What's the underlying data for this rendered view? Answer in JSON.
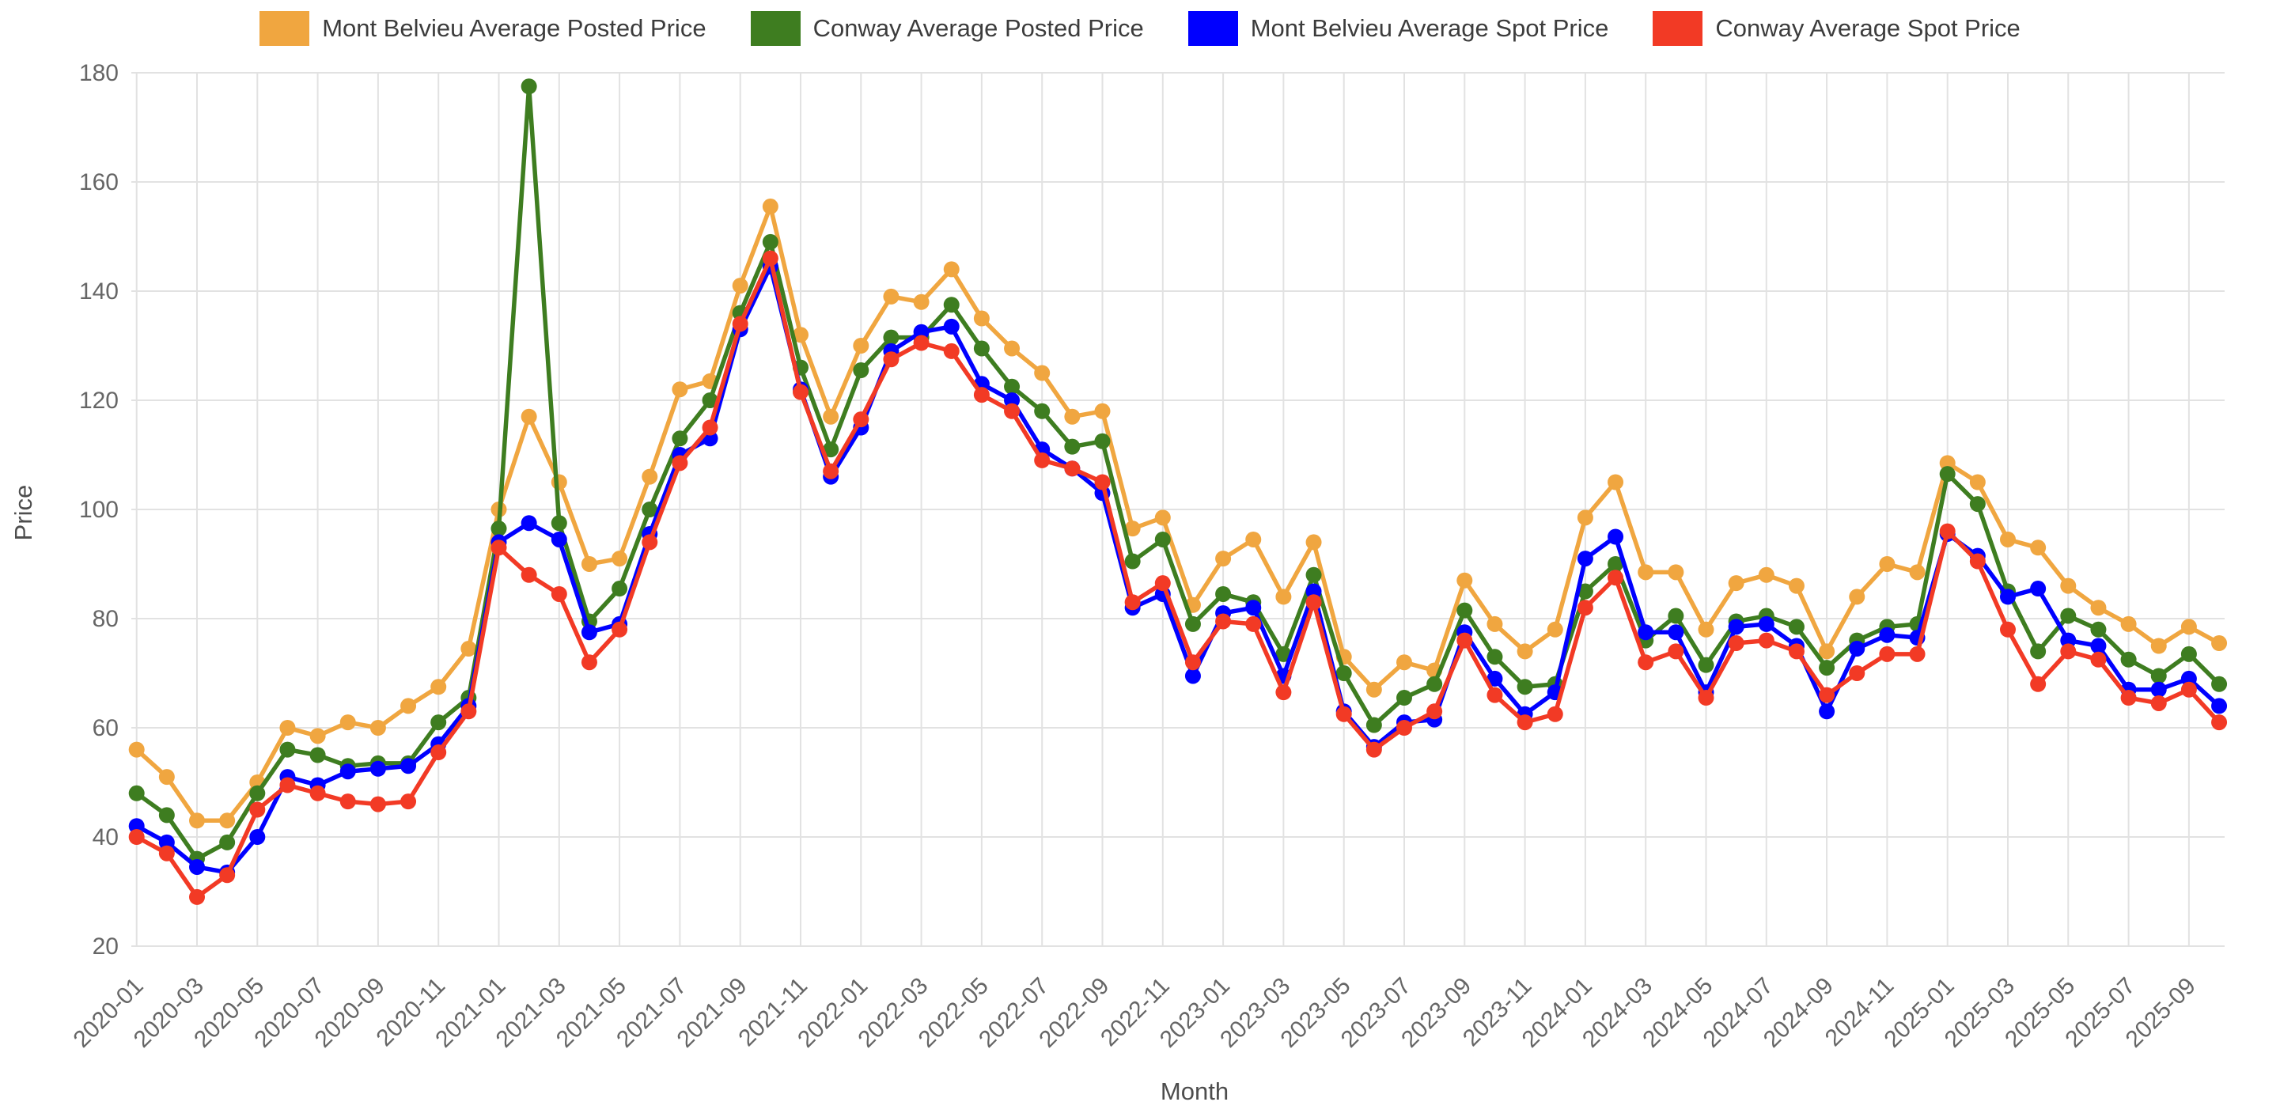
{
  "chart_data": {
    "type": "line",
    "title": "",
    "xlabel": "Month",
    "ylabel": "Price",
    "ylim": [
      20,
      180
    ],
    "grid": true,
    "legend_position": "top",
    "y_ticks": [
      20,
      40,
      60,
      80,
      100,
      120,
      140,
      160,
      180
    ],
    "x": [
      "2020-01",
      "2020-02",
      "2020-03",
      "2020-04",
      "2020-05",
      "2020-06",
      "2020-07",
      "2020-08",
      "2020-09",
      "2020-10",
      "2020-11",
      "2020-12",
      "2021-01",
      "2021-02",
      "2021-03",
      "2021-04",
      "2021-05",
      "2021-06",
      "2021-07",
      "2021-08",
      "2021-09",
      "2021-10",
      "2021-11",
      "2021-12",
      "2022-01",
      "2022-02",
      "2022-03",
      "2022-04",
      "2022-05",
      "2022-06",
      "2022-07",
      "2022-08",
      "2022-09",
      "2022-10",
      "2022-11",
      "2022-12",
      "2023-01",
      "2023-02",
      "2023-03",
      "2023-04",
      "2023-05",
      "2023-06",
      "2023-07",
      "2023-08",
      "2023-09",
      "2023-10",
      "2023-11",
      "2023-12",
      "2024-01",
      "2024-02",
      "2024-03",
      "2024-04",
      "2024-05",
      "2024-06",
      "2024-07",
      "2024-08",
      "2024-09",
      "2024-10",
      "2024-11",
      "2024-12",
      "2025-01",
      "2025-02",
      "2025-03",
      "2025-04",
      "2025-05",
      "2025-06",
      "2025-07",
      "2025-08",
      "2025-09",
      "2025-10"
    ],
    "x_tick_labels": [
      "2020-01",
      "2020-03",
      "2020-05",
      "2020-07",
      "2020-09",
      "2020-11",
      "2021-01",
      "2021-03",
      "2021-05",
      "2021-07",
      "2021-09",
      "2021-11",
      "2022-01",
      "2022-03",
      "2022-05",
      "2022-07",
      "2022-09",
      "2022-11",
      "2023-01",
      "2023-03",
      "2023-05",
      "2023-07",
      "2023-09",
      "2023-11",
      "2024-01",
      "2024-03",
      "2024-05",
      "2024-07",
      "2024-09",
      "2024-11",
      "2025-01",
      "2025-03",
      "2025-05",
      "2025-07",
      "2025-09"
    ],
    "series": [
      {
        "name": "Mont Belvieu Average Posted Price",
        "color": "#F0A640",
        "values": [
          56,
          51,
          43,
          43,
          50,
          60,
          58.5,
          61,
          60,
          64,
          67.5,
          74.5,
          100,
          117,
          105,
          90,
          91,
          106,
          122,
          123.5,
          141,
          155.5,
          132,
          117,
          130,
          139,
          138,
          144,
          135,
          129.5,
          125,
          117,
          118,
          96.5,
          98.5,
          82.5,
          91,
          94.5,
          84,
          94,
          73,
          67,
          72,
          70.5,
          87,
          79,
          74,
          78,
          98.5,
          105,
          88.5,
          88.5,
          78,
          86.5,
          88,
          86,
          74,
          84,
          90,
          88.5,
          108.5,
          105,
          94.5,
          93,
          86,
          82,
          79,
          75,
          78.5,
          75.5
        ]
      },
      {
        "name": "Conway Average Posted Price",
        "color": "#3E7D20",
        "values": [
          48,
          44,
          36,
          39,
          48,
          56,
          55,
          53,
          53.5,
          53.5,
          61,
          65.5,
          96.5,
          177.5,
          97.5,
          79.5,
          85.5,
          100,
          113,
          120,
          136,
          149,
          126,
          111,
          125.5,
          131.5,
          131.5,
          137.5,
          129.5,
          122.5,
          118,
          111.5,
          112.5,
          90.5,
          94.5,
          79,
          84.5,
          83,
          73.5,
          88,
          70,
          60.5,
          65.5,
          68,
          81.5,
          73,
          67.5,
          68,
          85,
          90,
          76,
          80.5,
          71.5,
          79.5,
          80.5,
          78.5,
          71,
          76,
          78.5,
          79,
          106.5,
          101,
          85,
          74,
          80.5,
          78,
          72.5,
          69.5,
          73.5,
          68
        ]
      },
      {
        "name": "Mont Belvieu Average Spot Price",
        "color": "#0000FF",
        "values": [
          42,
          39,
          34.5,
          33.5,
          40,
          51,
          49.5,
          52,
          52.5,
          53,
          57,
          64,
          94,
          97.5,
          94.5,
          77.5,
          79,
          95.5,
          110,
          113,
          133,
          144.5,
          122,
          106,
          115,
          129,
          132.5,
          133.5,
          123,
          120,
          111,
          107.5,
          103,
          82,
          84.5,
          69.5,
          81,
          82,
          69.5,
          85,
          63,
          56.5,
          61,
          61.5,
          77.5,
          69,
          62.5,
          66.5,
          91,
          95,
          77.5,
          77.5,
          66.5,
          78.5,
          79,
          75,
          63,
          74.5,
          77,
          76.5,
          95.5,
          91.5,
          84,
          85.5,
          76,
          75,
          67,
          67,
          69,
          64
        ]
      },
      {
        "name": "Conway Average Spot Price",
        "color": "#F23A25",
        "values": [
          40,
          37,
          29,
          33,
          45,
          49.5,
          48,
          46.5,
          46,
          46.5,
          55.5,
          63,
          93,
          88,
          84.5,
          72,
          78,
          94,
          108.5,
          115,
          134,
          146,
          121.5,
          107,
          116.5,
          127.5,
          130.5,
          129,
          121,
          118,
          109,
          107.5,
          105,
          83,
          86.5,
          72,
          79.5,
          79,
          66.5,
          83,
          62.5,
          56,
          60,
          63,
          76,
          66,
          61,
          62.5,
          82,
          87.5,
          72,
          74,
          65.5,
          75.5,
          76,
          74,
          66,
          70,
          73.5,
          73.5,
          96,
          90.5,
          78,
          68,
          74,
          72.5,
          65.5,
          64.5,
          67,
          61
        ]
      }
    ]
  }
}
